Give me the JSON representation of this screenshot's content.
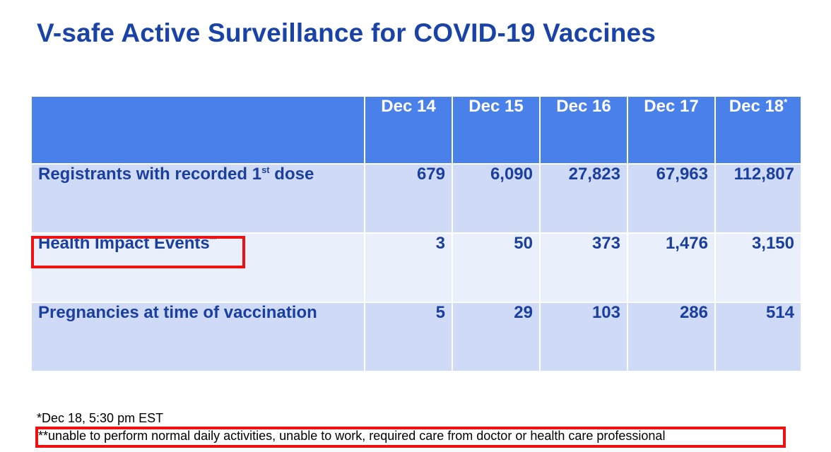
{
  "title": "V-safe Active Surveillance for COVID-19 Vaccines",
  "table": {
    "columns": [
      "Dec 14",
      "Dec 15",
      "Dec 16",
      "Dec 17",
      "Dec 18"
    ],
    "column_marks": [
      "",
      "",
      "",
      "",
      "*"
    ],
    "rows": [
      {
        "label": "Registrants with recorded 1",
        "label_sup": "st",
        "label_suffix": " dose",
        "values": [
          "679",
          "6,090",
          "27,823",
          "67,963",
          "112,807"
        ]
      },
      {
        "label": "Health Impact Events",
        "label_sup": "**",
        "label_suffix": "",
        "values": [
          "3",
          "50",
          "373",
          "1,476",
          "3,150"
        ]
      },
      {
        "label": "Pregnancies at time of vaccination",
        "label_sup": "",
        "label_suffix": "",
        "values": [
          "5",
          "29",
          "103",
          "286",
          "514"
        ]
      }
    ]
  },
  "footnotes": {
    "dec18": "*Dec 18, 5:30 pm EST",
    "health_events": "**unable to perform normal daily activities, unable to work, required care from doctor or health care professional"
  },
  "colors": {
    "title": "#1a43a8",
    "header_bg": "#4a80ea",
    "row_dark": "#cfdbf6",
    "row_light": "#e9effb",
    "highlight": "#ee1111"
  }
}
